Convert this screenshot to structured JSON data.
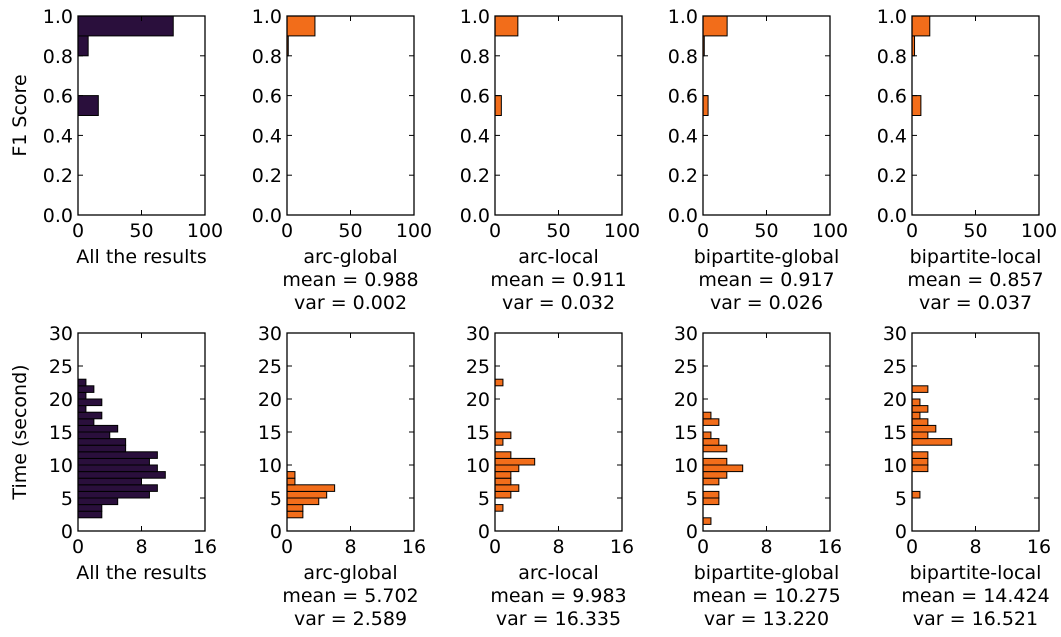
{
  "chart_data": [
    {
      "type": "bar",
      "orientation": "horizontal",
      "row": "f1",
      "ylabel": "F1 Score",
      "caption_lines": [
        "All the results"
      ],
      "xlim": [
        0,
        100
      ],
      "ylim": [
        0,
        1.0
      ],
      "xticks": [
        0,
        50,
        100
      ],
      "yticks": [
        0.0,
        0.2,
        0.4,
        0.6,
        0.8,
        1.0
      ],
      "bin_width": 0.1,
      "bars": [
        {
          "y": 0.5,
          "value": 16
        },
        {
          "y": 0.8,
          "value": 8
        },
        {
          "y": 0.9,
          "value": 75
        }
      ],
      "bar_color": "#2a0f3c",
      "grid": false
    },
    {
      "type": "bar",
      "orientation": "horizontal",
      "row": "f1",
      "caption_lines": [
        "arc-global",
        "mean = 0.988",
        "var = 0.002"
      ],
      "xlim": [
        0,
        100
      ],
      "ylim": [
        0,
        1.0
      ],
      "xticks": [
        0,
        50,
        100
      ],
      "yticks": [
        0.0,
        0.2,
        0.4,
        0.6,
        0.8,
        1.0
      ],
      "bin_width": 0.1,
      "bars": [
        {
          "y": 0.8,
          "value": 1
        },
        {
          "y": 0.9,
          "value": 22
        }
      ],
      "bar_color": "#f26d1a",
      "grid": false
    },
    {
      "type": "bar",
      "orientation": "horizontal",
      "row": "f1",
      "caption_lines": [
        "arc-local",
        "mean = 0.911",
        "var = 0.032"
      ],
      "xlim": [
        0,
        100
      ],
      "ylim": [
        0,
        1.0
      ],
      "xticks": [
        0,
        50,
        100
      ],
      "yticks": [
        0.0,
        0.2,
        0.4,
        0.6,
        0.8,
        1.0
      ],
      "bin_width": 0.1,
      "bars": [
        {
          "y": 0.5,
          "value": 5
        },
        {
          "y": 0.9,
          "value": 18
        }
      ],
      "bar_color": "#f26d1a",
      "grid": false
    },
    {
      "type": "bar",
      "orientation": "horizontal",
      "row": "f1",
      "caption_lines": [
        "bipartite-global",
        "mean = 0.917",
        "var = 0.026"
      ],
      "xlim": [
        0,
        100
      ],
      "ylim": [
        0,
        1.0
      ],
      "xticks": [
        0,
        50,
        100
      ],
      "yticks": [
        0.0,
        0.2,
        0.4,
        0.6,
        0.8,
        1.0
      ],
      "bin_width": 0.1,
      "bars": [
        {
          "y": 0.5,
          "value": 4
        },
        {
          "y": 0.8,
          "value": 1
        },
        {
          "y": 0.9,
          "value": 19
        }
      ],
      "bar_color": "#f26d1a",
      "grid": false
    },
    {
      "type": "bar",
      "orientation": "horizontal",
      "row": "f1",
      "caption_lines": [
        "bipartite-local",
        "mean = 0.857",
        "var = 0.037"
      ],
      "xlim": [
        0,
        100
      ],
      "ylim": [
        0,
        1.0
      ],
      "xticks": [
        0,
        50,
        100
      ],
      "yticks": [
        0.0,
        0.2,
        0.4,
        0.6,
        0.8,
        1.0
      ],
      "bin_width": 0.1,
      "bars": [
        {
          "y": 0.5,
          "value": 7
        },
        {
          "y": 0.8,
          "value": 2
        },
        {
          "y": 0.9,
          "value": 14
        }
      ],
      "bar_color": "#f26d1a",
      "grid": false
    },
    {
      "type": "bar",
      "orientation": "horizontal",
      "row": "time",
      "ylabel": "Time (second)",
      "caption_lines": [
        "All the results"
      ],
      "xlim": [
        0,
        16
      ],
      "ylim": [
        0,
        30
      ],
      "xticks": [
        0,
        8,
        16
      ],
      "yticks": [
        0,
        5,
        10,
        15,
        20,
        25,
        30
      ],
      "bin_width": 1,
      "bars": [
        {
          "y": 2,
          "value": 3
        },
        {
          "y": 3,
          "value": 3
        },
        {
          "y": 4,
          "value": 5
        },
        {
          "y": 5,
          "value": 9
        },
        {
          "y": 6,
          "value": 10
        },
        {
          "y": 7,
          "value": 8
        },
        {
          "y": 8,
          "value": 11
        },
        {
          "y": 9,
          "value": 10
        },
        {
          "y": 10,
          "value": 9
        },
        {
          "y": 11,
          "value": 10
        },
        {
          "y": 12,
          "value": 6
        },
        {
          "y": 13,
          "value": 6
        },
        {
          "y": 14,
          "value": 4
        },
        {
          "y": 15,
          "value": 5
        },
        {
          "y": 16,
          "value": 2
        },
        {
          "y": 17,
          "value": 3
        },
        {
          "y": 18,
          "value": 1
        },
        {
          "y": 19,
          "value": 3
        },
        {
          "y": 20,
          "value": 1
        },
        {
          "y": 21,
          "value": 2
        },
        {
          "y": 22,
          "value": 1
        }
      ],
      "bar_color": "#2a0f3c",
      "grid": false
    },
    {
      "type": "bar",
      "orientation": "horizontal",
      "row": "time",
      "caption_lines": [
        "arc-global",
        "mean = 5.702",
        "var = 2.589"
      ],
      "xlim": [
        0,
        16
      ],
      "ylim": [
        0,
        30
      ],
      "xticks": [
        0,
        8,
        16
      ],
      "yticks": [
        0,
        5,
        10,
        15,
        20,
        25,
        30
      ],
      "bin_width": 1,
      "bars": [
        {
          "y": 2,
          "value": 2
        },
        {
          "y": 3,
          "value": 2
        },
        {
          "y": 4,
          "value": 4
        },
        {
          "y": 5,
          "value": 5
        },
        {
          "y": 6,
          "value": 6
        },
        {
          "y": 7,
          "value": 1
        },
        {
          "y": 8,
          "value": 1
        }
      ],
      "bar_color": "#f26d1a",
      "grid": false
    },
    {
      "type": "bar",
      "orientation": "horizontal",
      "row": "time",
      "caption_lines": [
        "arc-local",
        "mean = 9.983",
        "var = 16.335"
      ],
      "xlim": [
        0,
        16
      ],
      "ylim": [
        0,
        30
      ],
      "xticks": [
        0,
        8,
        16
      ],
      "yticks": [
        0,
        5,
        10,
        15,
        20,
        25,
        30
      ],
      "bin_width": 1,
      "bars": [
        {
          "y": 3,
          "value": 1
        },
        {
          "y": 5,
          "value": 2
        },
        {
          "y": 6,
          "value": 3
        },
        {
          "y": 7,
          "value": 2
        },
        {
          "y": 8,
          "value": 2
        },
        {
          "y": 9,
          "value": 3
        },
        {
          "y": 10,
          "value": 5
        },
        {
          "y": 11,
          "value": 2
        },
        {
          "y": 13,
          "value": 1
        },
        {
          "y": 14,
          "value": 2
        },
        {
          "y": 22,
          "value": 1
        }
      ],
      "bar_color": "#f26d1a",
      "grid": false
    },
    {
      "type": "bar",
      "orientation": "horizontal",
      "row": "time",
      "caption_lines": [
        "bipartite-global",
        "mean = 10.275",
        "var = 13.220"
      ],
      "xlim": [
        0,
        16
      ],
      "ylim": [
        0,
        30
      ],
      "xticks": [
        0,
        8,
        16
      ],
      "yticks": [
        0,
        5,
        10,
        15,
        20,
        25,
        30
      ],
      "bin_width": 1,
      "bars": [
        {
          "y": 1,
          "value": 1
        },
        {
          "y": 4,
          "value": 2
        },
        {
          "y": 5,
          "value": 2
        },
        {
          "y": 7,
          "value": 2
        },
        {
          "y": 8,
          "value": 3
        },
        {
          "y": 9,
          "value": 5
        },
        {
          "y": 10,
          "value": 3
        },
        {
          "y": 12,
          "value": 3
        },
        {
          "y": 13,
          "value": 2
        },
        {
          "y": 14,
          "value": 1
        },
        {
          "y": 16,
          "value": 2
        },
        {
          "y": 17,
          "value": 1
        }
      ],
      "bar_color": "#f26d1a",
      "grid": false
    },
    {
      "type": "bar",
      "orientation": "horizontal",
      "row": "time",
      "caption_lines": [
        "bipartite-local",
        "mean = 14.424",
        "var = 16.521"
      ],
      "xlim": [
        0,
        16
      ],
      "ylim": [
        0,
        30
      ],
      "xticks": [
        0,
        8,
        16
      ],
      "yticks": [
        0,
        5,
        10,
        15,
        20,
        25,
        30
      ],
      "bin_width": 1,
      "bars": [
        {
          "y": 5,
          "value": 1
        },
        {
          "y": 9,
          "value": 2
        },
        {
          "y": 10,
          "value": 2
        },
        {
          "y": 11,
          "value": 2
        },
        {
          "y": 13,
          "value": 5
        },
        {
          "y": 14,
          "value": 2
        },
        {
          "y": 15,
          "value": 3
        },
        {
          "y": 16,
          "value": 2
        },
        {
          "y": 17,
          "value": 1
        },
        {
          "y": 18,
          "value": 2
        },
        {
          "y": 19,
          "value": 1
        },
        {
          "y": 21,
          "value": 2
        }
      ],
      "bar_color": "#f26d1a",
      "grid": false
    }
  ]
}
